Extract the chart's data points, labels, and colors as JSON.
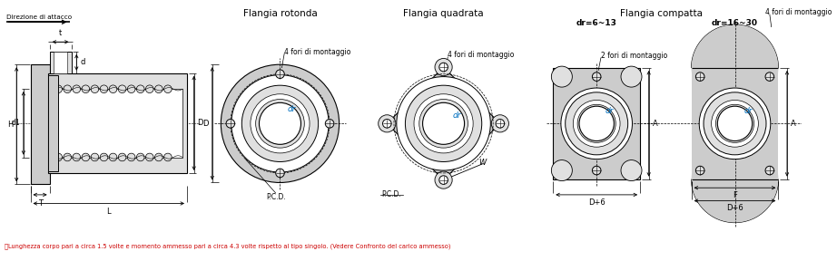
{
  "bg_color": "#ffffff",
  "line_color": "#000000",
  "blue_label_color": "#0070c0",
  "gray_fill": "#cccccc",
  "light_gray": "#e0e0e0",
  "section_titles": [
    "Flangia rotonda",
    "Flangia quadrata",
    "Flangia compatta"
  ],
  "subtitle_compact1": "dr=6~13",
  "subtitle_compact2": "dr=16~30",
  "dir_attacco": "Direzione di attacco",
  "label_t": "t",
  "label_d": "d",
  "label_d1": "d1",
  "label_H": "H",
  "label_D": "D",
  "label_T": "T",
  "label_L": "L",
  "label_holes4": "4 fori di montaggio",
  "label_holes2": "2 fori di montaggio",
  "label_pcd": "P.C.D.",
  "label_dr": "dr",
  "label_W": "W",
  "label_A": "A",
  "label_F": "F",
  "label_Dp6": "D+6",
  "footnote": "ⓘLunghezza corpo pari a circa 1.5 volte e momento ammesso pari a circa 4.3 volte rispetto al tipo singolo. (Vedere Confronto del carico ammesso)",
  "footnote_color": "#cc0000"
}
